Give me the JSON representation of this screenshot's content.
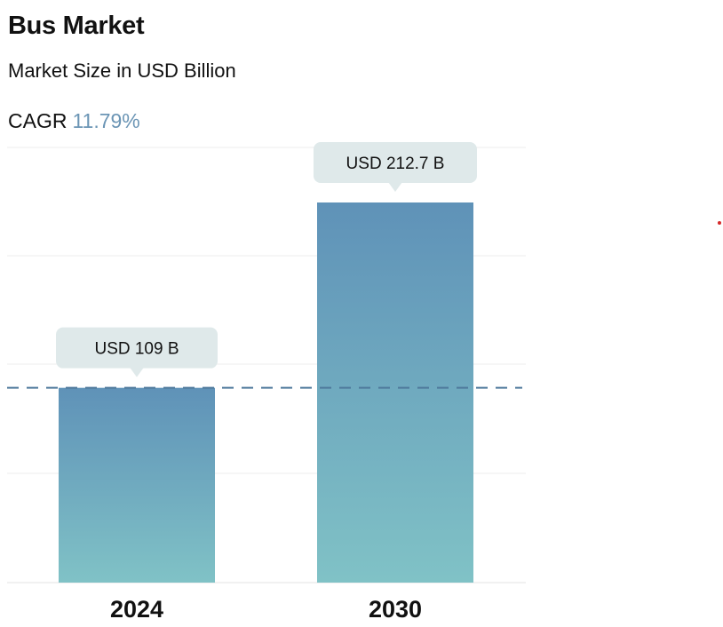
{
  "header": {
    "title": "Bus Market",
    "subtitle": "Market Size in USD Billion",
    "cagr_label": "CAGR",
    "cagr_value": "11.79%"
  },
  "colors": {
    "bar_top": "#5f92b8",
    "bar_bottom": "#80c2c6",
    "callout_bg": "#dfe9ea",
    "dashed_line": "#4f7a9c",
    "cagr_value": "#6b95b5",
    "grid": "#eeeeee"
  },
  "chart_data": {
    "type": "bar",
    "categories": [
      "2024",
      "2030"
    ],
    "values": [
      109,
      212.7
    ],
    "data_labels": [
      "USD 109 B",
      "USD 212.7 B"
    ],
    "reference_line": 109,
    "grid": true
  }
}
